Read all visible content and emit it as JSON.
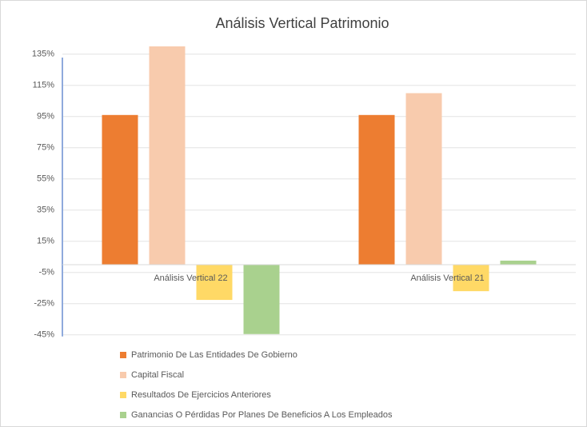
{
  "chart_data": {
    "type": "bar",
    "title": "Análisis Vertical Patrimonio",
    "categories": [
      "Análisis Vertical 22",
      "Análisis Vertical 21"
    ],
    "series": [
      {
        "name": "Patrimonio De Las Entidades De Gobierno",
        "color": "#ed7d31",
        "values": [
          96,
          96
        ]
      },
      {
        "name": "Capital Fiscal",
        "color": "#f8cbad",
        "values": [
          140,
          110
        ]
      },
      {
        "name": "Resultados De Ejercicios Anteriores",
        "color": "#ffd966",
        "values": [
          -22.6,
          -17
        ]
      },
      {
        "name": "Ganancias O Pérdidas Por Planes De Beneficios A Los Empleados",
        "color": "#a9d18e",
        "values": [
          -44.5,
          2.6
        ]
      }
    ],
    "ylim": [
      -45,
      145
    ],
    "yticks": [
      {
        "value": -45,
        "label": "-45%"
      },
      {
        "value": -25,
        "label": "-25%"
      },
      {
        "value": -5,
        "label": "-5%"
      },
      {
        "value": 15,
        "label": "15%"
      },
      {
        "value": 35,
        "label": "35%"
      },
      {
        "value": 55,
        "label": "55%"
      },
      {
        "value": 75,
        "label": "75%"
      },
      {
        "value": 95,
        "label": "95%"
      },
      {
        "value": 115,
        "label": "115%"
      },
      {
        "value": 135,
        "label": "135%"
      }
    ],
    "grid": true,
    "legend": "bottom"
  }
}
